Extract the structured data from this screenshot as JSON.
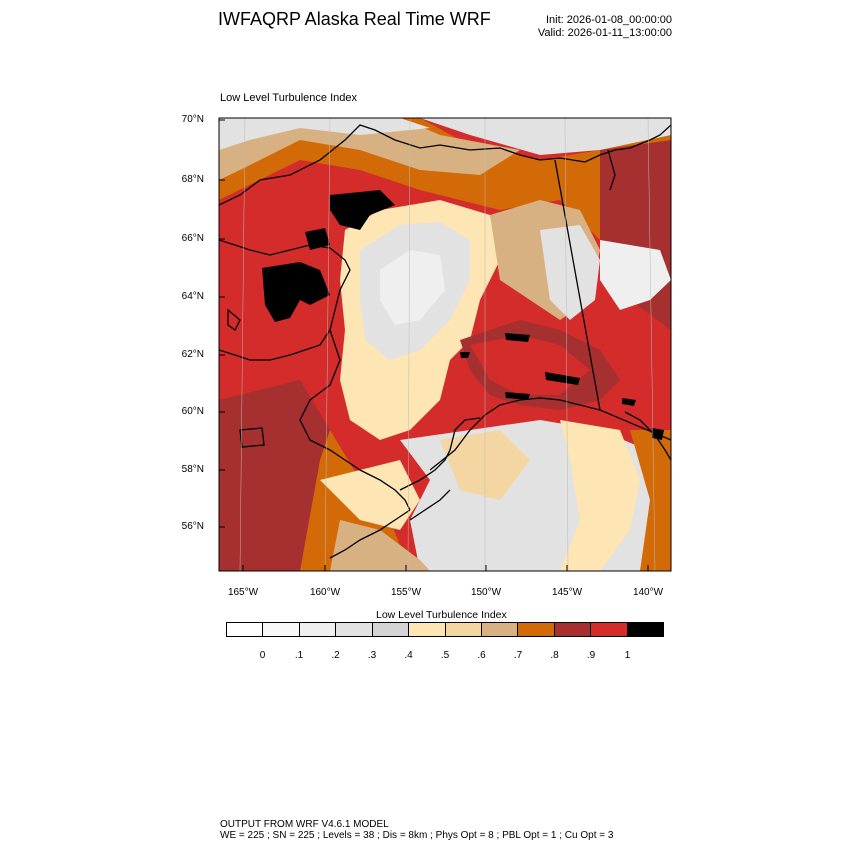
{
  "header": {
    "title": "IWFAQRP Alaska Real Time WRF",
    "init": "Init: 2026-01-08_00:00:00",
    "valid": "Valid: 2026-01-11_13:00:00"
  },
  "plot": {
    "title": "Low Level Turbulence Index",
    "lat_labels": [
      "70°N",
      "68°N",
      "66°N",
      "64°N",
      "62°N",
      "60°N",
      "58°N",
      "56°N"
    ],
    "lon_labels": [
      "165°W",
      "160°W",
      "155°W",
      "150°W",
      "145°W",
      "140°W"
    ]
  },
  "colorbar": {
    "title": "Low Level Turbulence Index",
    "labels": [
      "0",
      ".1",
      ".2",
      ".3",
      ".4",
      ".5",
      ".6",
      ".7",
      ".8",
      ".9",
      "1"
    ],
    "colors": [
      "#ffffff",
      "#f8f8f8",
      "#efefef",
      "#e2e2e2",
      "#d4d4d4",
      "#fde5b4",
      "#f3d6a2",
      "#d8b183",
      "#d26a08",
      "#a62f2f",
      "#d42b2b",
      "#000000"
    ]
  },
  "footer": {
    "line1": "OUTPUT FROM WRF V4.6.1 MODEL",
    "line2": "WE = 225 ; SN = 225 ; Levels = 38 ; Dis = 8km ; Phys Opt = 8 ; PBL Opt = 1 ; Cu Opt = 3"
  }
}
